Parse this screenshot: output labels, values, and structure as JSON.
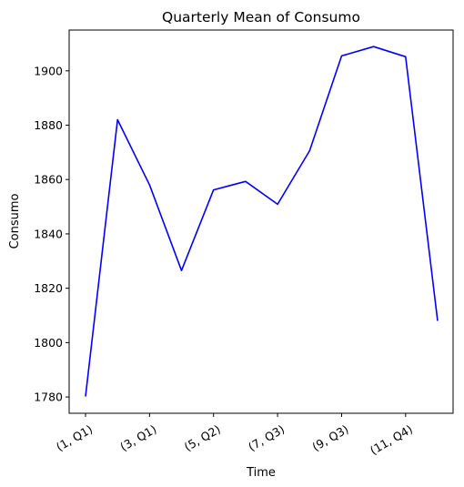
{
  "chart_data": {
    "type": "line",
    "title": "Quarterly Mean of Consumo",
    "xlabel": "Time",
    "ylabel": "Consumo",
    "x": [
      "(1, Q1)",
      "(2, Q1)",
      "(3, Q1)",
      "(4, Q2)",
      "(5, Q2)",
      "(6, Q2)",
      "(7, Q3)",
      "(8, Q3)",
      "(9, Q3)",
      "(10, Q4)",
      "(11, Q4)",
      "(12, Q4)"
    ],
    "x_tick_labels": [
      "(1, Q1)",
      "(3, Q1)",
      "(5, Q2)",
      "(7, Q3)",
      "(9, Q3)",
      "(11, Q4)"
    ],
    "series": [
      {
        "color": "#0000ff",
        "values": [
          1780.2,
          1882.0,
          1858.0,
          1826.5,
          1856.2,
          1859.3,
          1850.9,
          1870.6,
          1905.5,
          1908.9,
          1905.2,
          1808.0
        ]
      }
    ],
    "ylim": [
      1774,
      1915
    ],
    "y_ticks": [
      1780,
      1800,
      1820,
      1840,
      1860,
      1880,
      1900
    ],
    "grid": false
  }
}
